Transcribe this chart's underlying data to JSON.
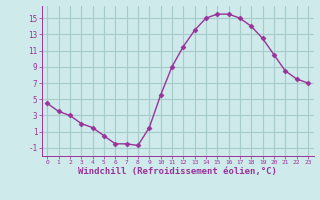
{
  "x": [
    0,
    1,
    2,
    3,
    4,
    5,
    6,
    7,
    8,
    9,
    10,
    11,
    12,
    13,
    14,
    15,
    16,
    17,
    18,
    19,
    20,
    21,
    22,
    23
  ],
  "y": [
    4.5,
    3.5,
    3.0,
    2.0,
    1.5,
    0.5,
    -0.5,
    -0.5,
    -0.7,
    1.5,
    5.5,
    9.0,
    11.5,
    13.5,
    15.0,
    15.5,
    15.5,
    15.0,
    14.0,
    12.5,
    10.5,
    8.5,
    7.5,
    7.0
  ],
  "line_color": "#993399",
  "marker": "D",
  "markersize": 2.5,
  "linewidth": 1.0,
  "xlabel": "Windchill (Refroidissement éolien,°C)",
  "xlabel_fontsize": 6.5,
  "xlim": [
    -0.5,
    23.5
  ],
  "ylim": [
    -2,
    16.5
  ],
  "yticks": [
    -1,
    1,
    3,
    5,
    7,
    9,
    11,
    13,
    15
  ],
  "ytick_labels": [
    "-1",
    "1",
    "3",
    "5",
    "7",
    "9",
    "11",
    "13",
    "15"
  ],
  "xticks": [
    0,
    1,
    2,
    3,
    4,
    5,
    6,
    7,
    8,
    9,
    10,
    11,
    12,
    13,
    14,
    15,
    16,
    17,
    18,
    19,
    20,
    21,
    22,
    23
  ],
  "bg_color": "#ceeaea",
  "grid_color": "#a8cccc",
  "tick_color": "#993399",
  "tick_label_color": "#993399",
  "font_family": "monospace"
}
